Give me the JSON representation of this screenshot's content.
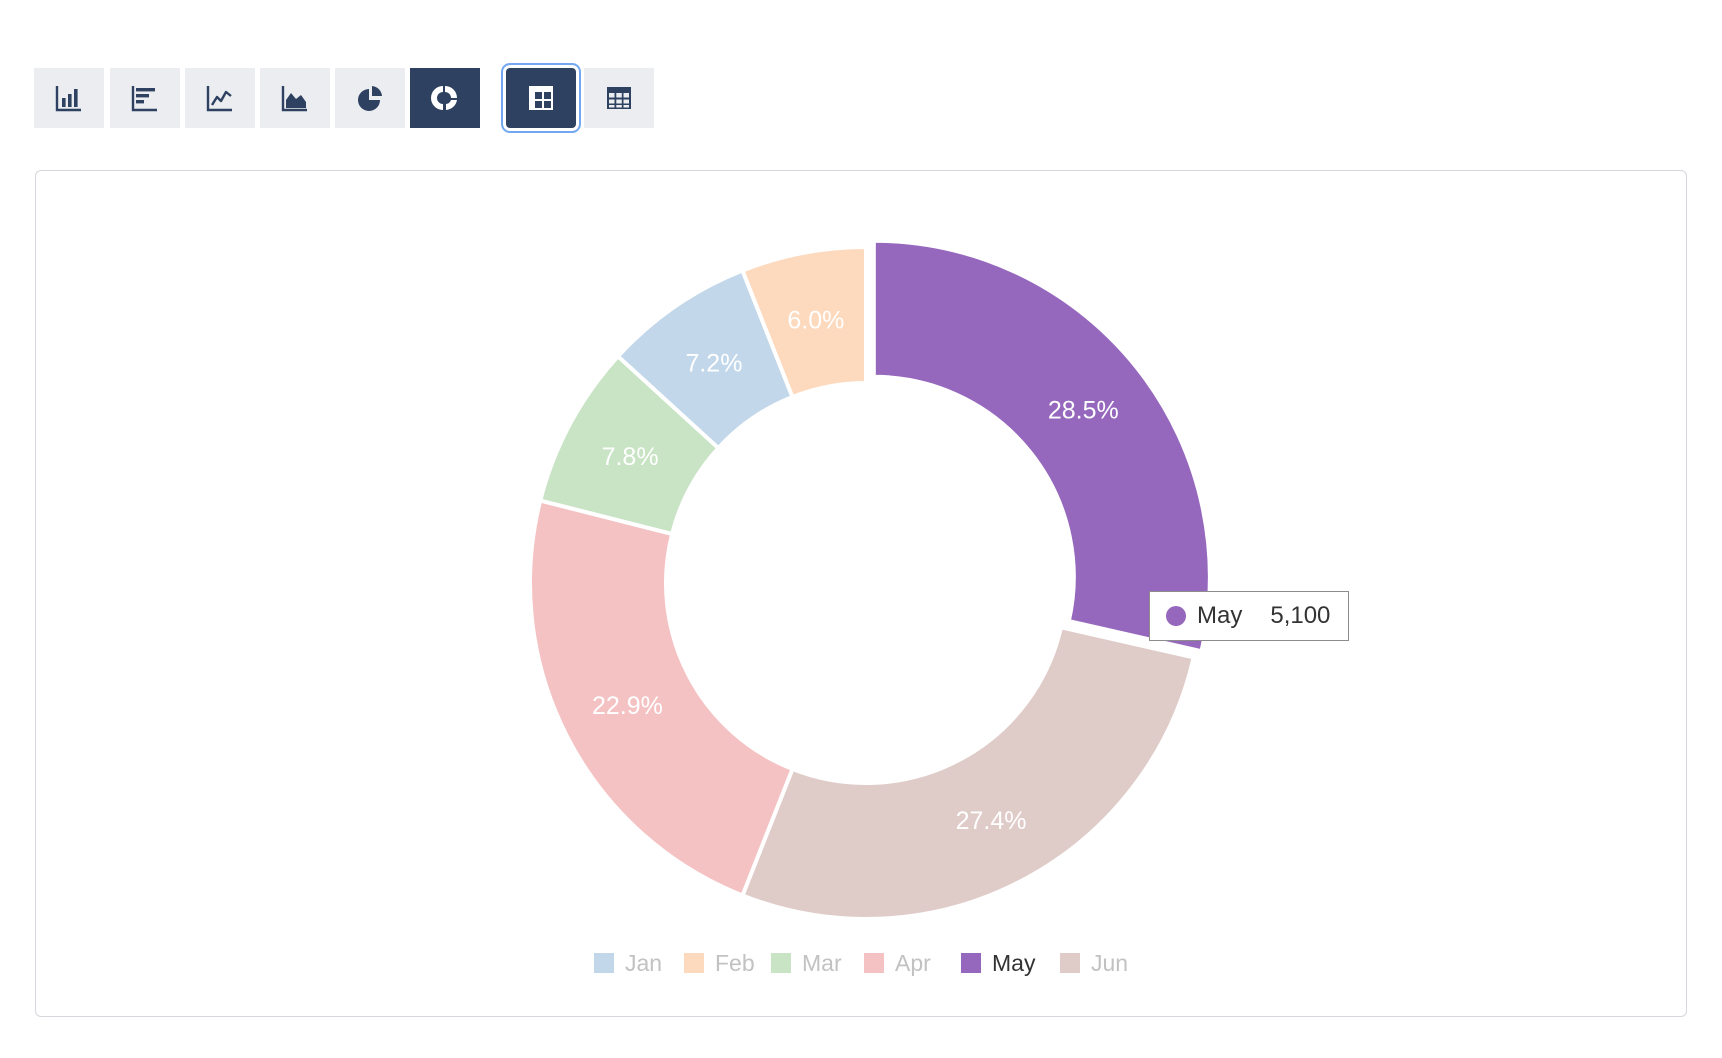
{
  "toolbar": {
    "chart_buttons": [
      {
        "icon": "bar-chart-icon",
        "label": "Bar chart",
        "active": false
      },
      {
        "icon": "horizontal-bar-chart-icon",
        "label": "Horizontal bar chart",
        "active": false
      },
      {
        "icon": "line-chart-icon",
        "label": "Line chart",
        "active": false
      },
      {
        "icon": "area-chart-icon",
        "label": "Area chart",
        "active": false
      },
      {
        "icon": "pie-chart-icon",
        "label": "Pie chart",
        "active": false
      },
      {
        "icon": "donut-chart-icon",
        "label": "Donut chart",
        "active": true
      }
    ],
    "view_buttons": [
      {
        "icon": "pivot-table-icon",
        "label": "Pivot table",
        "active": true
      },
      {
        "icon": "table-icon",
        "label": "Table",
        "active": false
      }
    ],
    "active_color": "#2e4160",
    "inactive_color": "#ebedf1"
  },
  "tooltip": {
    "label": "May",
    "value": "5,100",
    "color": "#9567bd"
  },
  "chart_data": {
    "type": "pie",
    "variant": "donut",
    "title": "",
    "categories": [
      "Jan",
      "Feb",
      "Mar",
      "Apr",
      "May",
      "Jun"
    ],
    "values": [
      1290,
      1070,
      1400,
      4100,
      5100,
      4900
    ],
    "percent_labels": [
      "7.2%",
      "6.0%",
      "7.8%",
      "22.9%",
      "28.5%",
      "27.4%"
    ],
    "colors": [
      "#c2d7ea",
      "#fdd9bd",
      "#c8e4c5",
      "#f5c2c3",
      "#9567bd",
      "#dfcbc8"
    ],
    "draw_order": [
      "May",
      "Jun",
      "Apr",
      "Mar",
      "Jan",
      "Feb"
    ],
    "highlighted": "May",
    "legend": {
      "position": "bottom-center",
      "items": [
        "Jan",
        "Feb",
        "Mar",
        "Apr",
        "May",
        "Jun"
      ],
      "active": "May",
      "active_color": "#333333",
      "inactive_color": "#c2c2c2"
    }
  }
}
